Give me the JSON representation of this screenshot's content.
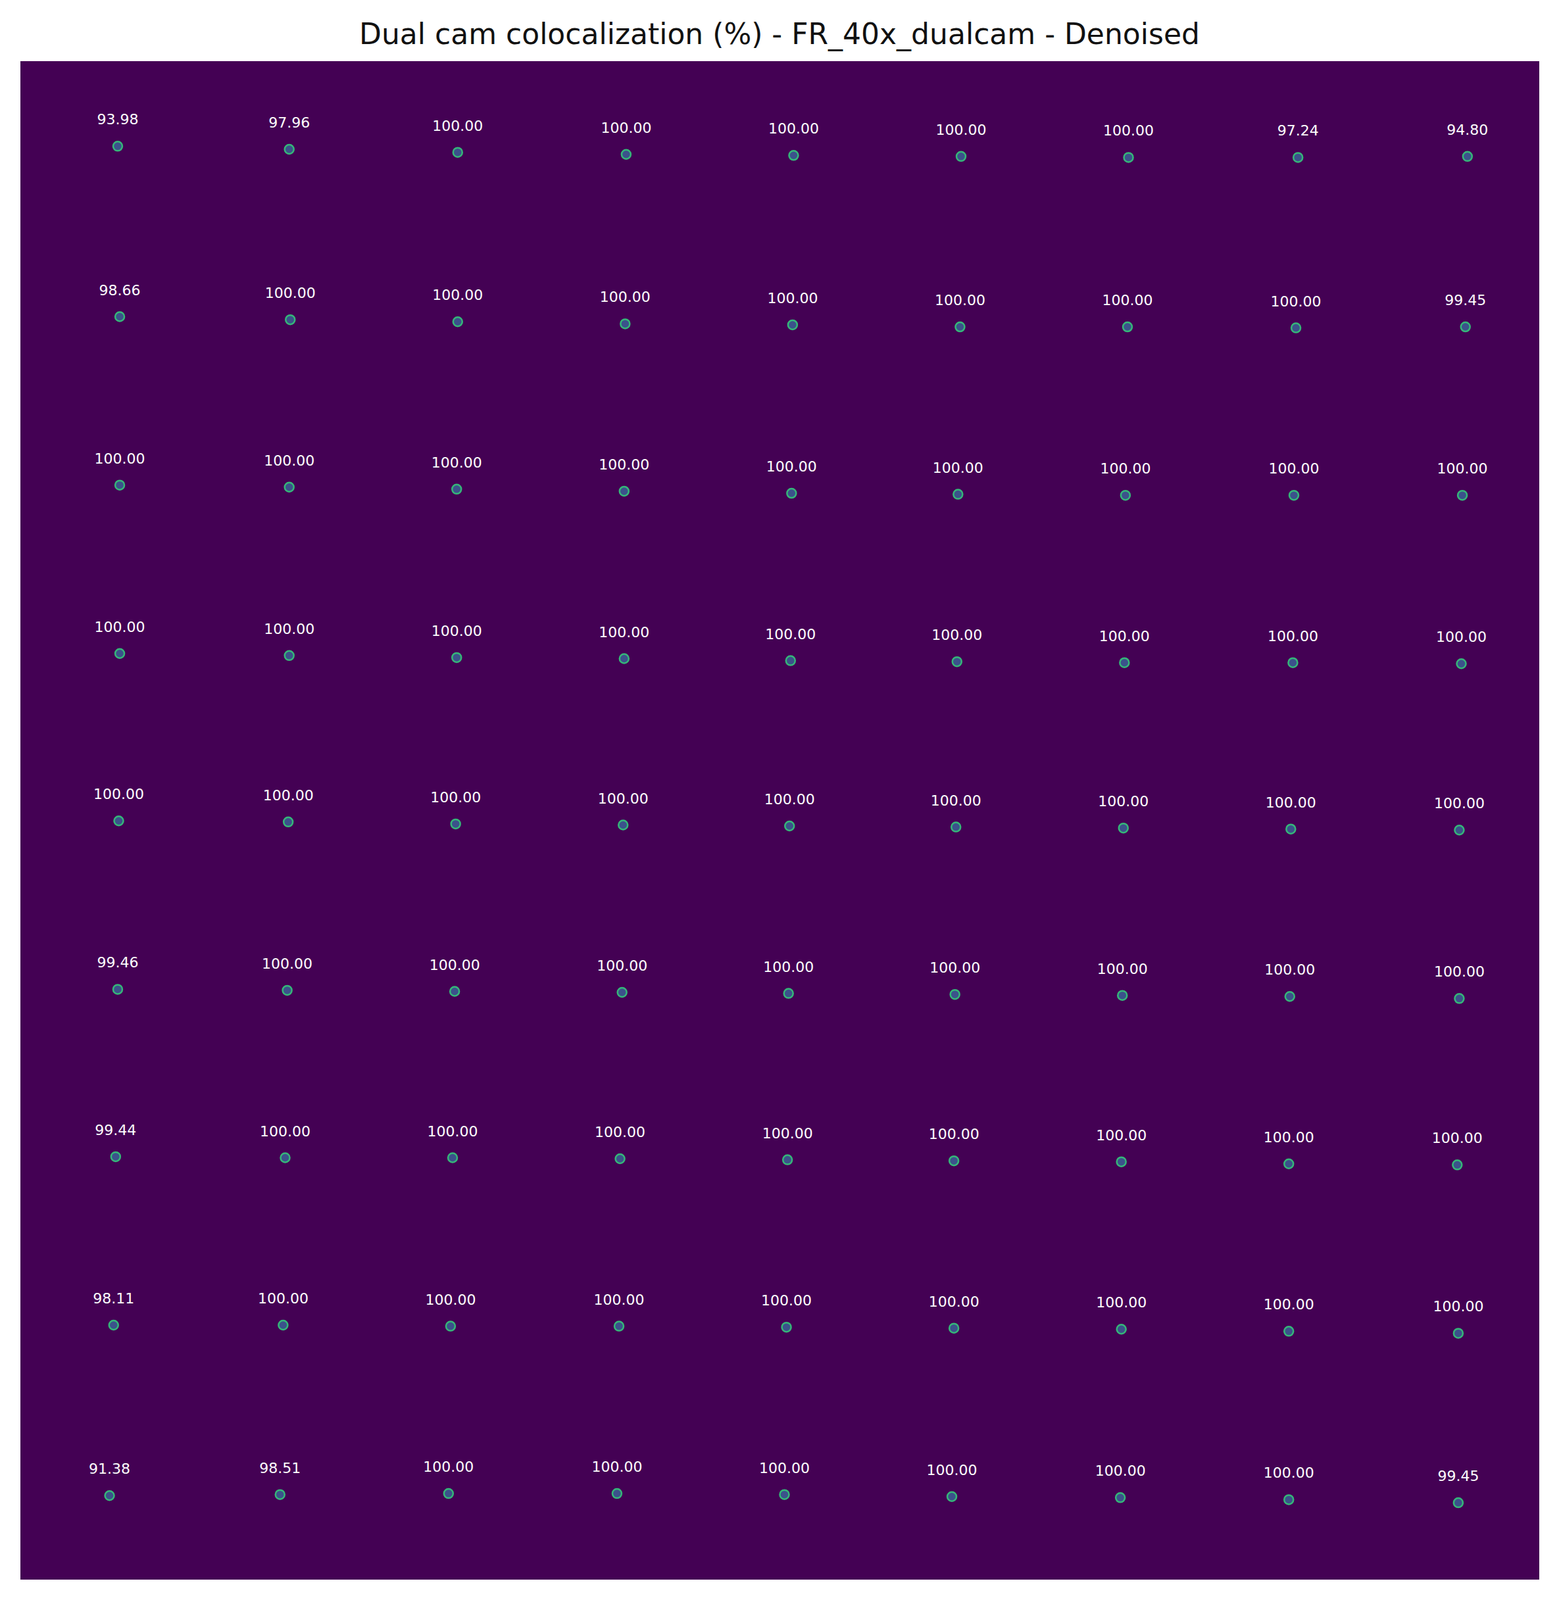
{
  "chart_data": {
    "type": "scatter",
    "title": "Dual cam colocalization (%) - FR_40x_dualcam - Denoised",
    "xlim": [
      0,
      1487
    ],
    "ylim": [
      0,
      1487
    ],
    "tick_labels": false,
    "grid": false,
    "data_labels": true,
    "color": "#35b779",
    "x": [
      95,
      263,
      428,
      593,
      757,
      921,
      1085,
      1251,
      1417,
      97,
      264,
      428,
      592,
      756,
      920,
      1084,
      1249,
      1415,
      97,
      263,
      427,
      591,
      755,
      918,
      1082,
      1247,
      1412,
      97,
      263,
      427,
      591,
      754,
      917,
      1081,
      1246,
      1411,
      96,
      262,
      426,
      590,
      753,
      916,
      1080,
      1244,
      1409,
      95,
      261,
      425,
      589,
      752,
      915,
      1079,
      1243,
      1409,
      93,
      259,
      423,
      587,
      751,
      914,
      1078,
      1242,
      1407,
      91,
      257,
      421,
      586,
      750,
      914,
      1078,
      1242,
      1408,
      87,
      254,
      419,
      584,
      748,
      912,
      1077,
      1242,
      1408
    ],
    "y": [
      83,
      86,
      89,
      91,
      92,
      93,
      94,
      94,
      93,
      250,
      253,
      255,
      257,
      258,
      260,
      260,
      261,
      260,
      415,
      417,
      419,
      421,
      423,
      424,
      425,
      425,
      425,
      580,
      582,
      584,
      585,
      587,
      588,
      589,
      589,
      590,
      744,
      745,
      747,
      748,
      749,
      750,
      751,
      752,
      753,
      909,
      910,
      911,
      912,
      913,
      914,
      915,
      916,
      918,
      1073,
      1074,
      1074,
      1075,
      1076,
      1077,
      1078,
      1080,
      1081,
      1238,
      1238,
      1239,
      1239,
      1240,
      1241,
      1242,
      1244,
      1246,
      1405,
      1404,
      1403,
      1403,
      1404,
      1406,
      1407,
      1409,
      1412
    ],
    "values": [
      93.98,
      97.96,
      100,
      100,
      100,
      100,
      100,
      97.24,
      94.8,
      98.66,
      100,
      100,
      100,
      100,
      100,
      100,
      100,
      99.45,
      100,
      100,
      100,
      100,
      100,
      100,
      100,
      100,
      100,
      100,
      100,
      100,
      100,
      100,
      100,
      100,
      100,
      100,
      100,
      100,
      100,
      100,
      100,
      100,
      100,
      100,
      100,
      99.46,
      100,
      100,
      100,
      100,
      100,
      100,
      100,
      100,
      99.44,
      100,
      100,
      100,
      100,
      100,
      100,
      100,
      100,
      98.11,
      100,
      100,
      100,
      100,
      100,
      100,
      100,
      100,
      91.38,
      98.51,
      100,
      100,
      100,
      100,
      100,
      100,
      99.45
    ],
    "value_labels": [
      "93.98",
      "97.96",
      "100.00",
      "100.00",
      "100.00",
      "100.00",
      "100.00",
      "97.24",
      "94.80",
      "98.66",
      "100.00",
      "100.00",
      "100.00",
      "100.00",
      "100.00",
      "100.00",
      "100.00",
      "99.45",
      "100.00",
      "100.00",
      "100.00",
      "100.00",
      "100.00",
      "100.00",
      "100.00",
      "100.00",
      "100.00",
      "100.00",
      "100.00",
      "100.00",
      "100.00",
      "100.00",
      "100.00",
      "100.00",
      "100.00",
      "100.00",
      "100.00",
      "100.00",
      "100.00",
      "100.00",
      "100.00",
      "100.00",
      "100.00",
      "100.00",
      "100.00",
      "99.46",
      "100.00",
      "100.00",
      "100.00",
      "100.00",
      "100.00",
      "100.00",
      "100.00",
      "100.00",
      "99.44",
      "100.00",
      "100.00",
      "100.00",
      "100.00",
      "100.00",
      "100.00",
      "100.00",
      "100.00",
      "98.11",
      "100.00",
      "100.00",
      "100.00",
      "100.00",
      "100.00",
      "100.00",
      "100.00",
      "100.00",
      "91.38",
      "98.51",
      "100.00",
      "100.00",
      "100.00",
      "100.00",
      "100.00",
      "100.00",
      "99.45"
    ]
  }
}
